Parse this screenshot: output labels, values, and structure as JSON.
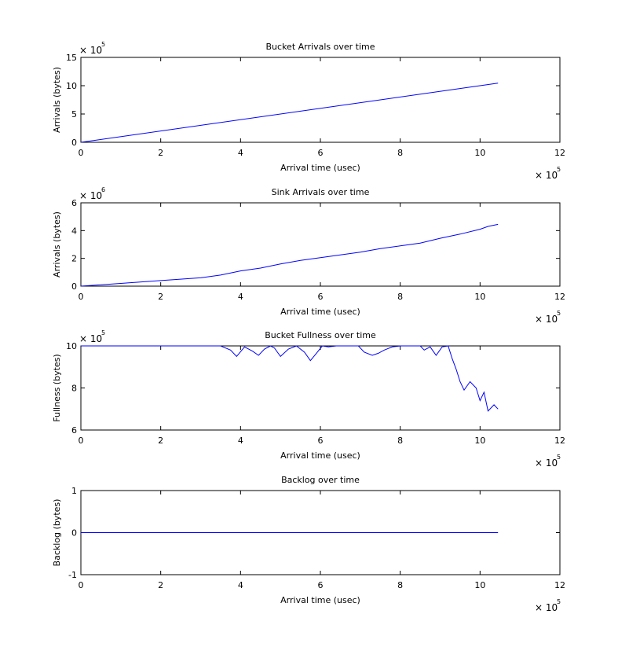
{
  "chart_data": [
    {
      "type": "line",
      "title": "Bucket Arrivals over time",
      "xlabel": "Arrival time (usec)",
      "ylabel": "Arrivals (bytes)",
      "xlim": [
        0,
        12
      ],
      "ylim": [
        0,
        15
      ],
      "x_ticks": [
        "0",
        "2",
        "4",
        "6",
        "8",
        "10",
        "12"
      ],
      "y_ticks": [
        "0",
        "5",
        "10",
        "15"
      ],
      "x_multiplier_base": "× 10",
      "x_multiplier_exp": "5",
      "y_multiplier_base": "× 10",
      "y_multiplier_exp": "5",
      "series": [
        {
          "color": "#0000ff",
          "x": [
            0,
            10.45
          ],
          "y": [
            0,
            10.45
          ]
        }
      ]
    },
    {
      "type": "line",
      "title": "Sink Arrivals over time",
      "xlabel": "Arrival time (usec)",
      "ylabel": "Arrivals (bytes)",
      "xlim": [
        0,
        12
      ],
      "ylim": [
        0,
        6
      ],
      "x_ticks": [
        "0",
        "2",
        "4",
        "6",
        "8",
        "10",
        "12"
      ],
      "y_ticks": [
        "0",
        "2",
        "4",
        "6"
      ],
      "x_multiplier_base": "× 10",
      "x_multiplier_exp": "5",
      "y_multiplier_base": "× 10",
      "y_multiplier_exp": "6",
      "series": [
        {
          "color": "#0000ff",
          "x": [
            0,
            1,
            2,
            3,
            3.5,
            4,
            4.5,
            5,
            5.5,
            6,
            6.5,
            7,
            7.5,
            8,
            8.5,
            9,
            9.5,
            10,
            10.2,
            10.45
          ],
          "y": [
            0,
            0.2,
            0.4,
            0.6,
            0.8,
            1.1,
            1.3,
            1.6,
            1.85,
            2.05,
            2.25,
            2.45,
            2.7,
            2.9,
            3.1,
            3.45,
            3.75,
            4.1,
            4.3,
            4.45
          ]
        }
      ]
    },
    {
      "type": "line",
      "title": "Bucket Fullness over time",
      "xlabel": "Arrival time (usec)",
      "ylabel": "Fullness (bytes)",
      "xlim": [
        0,
        12
      ],
      "ylim": [
        6,
        10
      ],
      "x_ticks": [
        "0",
        "2",
        "4",
        "6",
        "8",
        "10",
        "12"
      ],
      "y_ticks": [
        "6",
        "8",
        "10"
      ],
      "x_multiplier_base": "× 10",
      "x_multiplier_exp": "5",
      "y_multiplier_base": "× 10",
      "y_multiplier_exp": "5",
      "series": [
        {
          "color": "#0000ff",
          "x": [
            0,
            3.0,
            3.5,
            3.75,
            3.9,
            4.1,
            4.3,
            4.45,
            4.6,
            4.75,
            4.85,
            5.0,
            5.2,
            5.4,
            5.6,
            5.75,
            5.9,
            6.05,
            6.2,
            6.4,
            6.6,
            6.8,
            6.95,
            7.1,
            7.3,
            7.45,
            7.6,
            7.8,
            8.0,
            8.2,
            8.5,
            8.6,
            8.75,
            8.9,
            9.05,
            9.2,
            9.3,
            9.4,
            9.5,
            9.6,
            9.75,
            9.9,
            10.0,
            10.1,
            10.2,
            10.35,
            10.45
          ],
          "y": [
            10,
            10,
            10,
            9.8,
            9.5,
            9.95,
            9.75,
            9.55,
            9.85,
            10,
            9.9,
            9.5,
            9.85,
            10,
            9.7,
            9.3,
            9.65,
            10,
            9.95,
            10,
            10,
            10,
            10,
            9.7,
            9.55,
            9.65,
            9.8,
            9.95,
            10,
            10,
            10,
            9.8,
            9.95,
            9.55,
            9.95,
            10,
            9.4,
            8.9,
            8.3,
            7.9,
            8.3,
            8.0,
            7.4,
            7.8,
            6.9,
            7.2,
            7.0
          ]
        }
      ]
    },
    {
      "type": "line",
      "title": "Backlog over time",
      "xlabel": "Arrival time (usec)",
      "ylabel": "Backlog (bytes)",
      "xlim": [
        0,
        12
      ],
      "ylim": [
        -1,
        1
      ],
      "x_ticks": [
        "0",
        "2",
        "4",
        "6",
        "8",
        "10",
        "12"
      ],
      "y_ticks": [
        "-1",
        "0",
        "1"
      ],
      "x_multiplier_base": "× 10",
      "x_multiplier_exp": "5",
      "y_multiplier_base": "",
      "y_multiplier_exp": "",
      "series": [
        {
          "color": "#0000ff",
          "x": [
            0,
            10.45
          ],
          "y": [
            0,
            0
          ]
        }
      ]
    }
  ]
}
